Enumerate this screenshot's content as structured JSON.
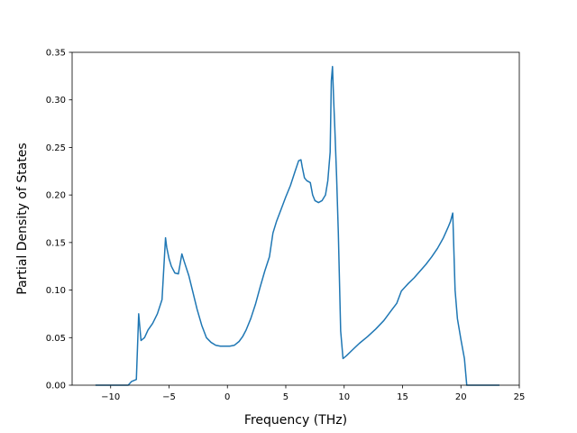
{
  "chart_data": {
    "type": "line",
    "title": "",
    "xlabel": "Frequency (THz)",
    "ylabel": "Partial Density of States",
    "xlim": [
      -13.3,
      25
    ],
    "ylim": [
      0,
      0.35
    ],
    "grid": false,
    "line_color": "#1f77b4",
    "x_ticks": [
      -10,
      -5,
      0,
      5,
      10,
      15,
      20,
      25
    ],
    "x_tick_labels": [
      "−10",
      "−5",
      "0",
      "5",
      "10",
      "15",
      "20",
      "25"
    ],
    "y_ticks": [
      0.0,
      0.05,
      0.1,
      0.15,
      0.2,
      0.25,
      0.3,
      0.35
    ],
    "y_tick_labels": [
      "0.00",
      "0.05",
      "0.10",
      "0.15",
      "0.20",
      "0.25",
      "0.30",
      "0.35"
    ],
    "series": [
      {
        "x": [
          -11.3,
          -10.0,
          -9.0,
          -8.5,
          -8.2,
          -7.8,
          -7.7,
          -7.6,
          -7.4,
          -7.1,
          -6.8,
          -6.4,
          -6.0,
          -5.6,
          -5.3,
          -5.2,
          -5.0,
          -4.8,
          -4.5,
          -4.2,
          -3.9,
          -3.7,
          -3.3,
          -3.0,
          -2.6,
          -2.2,
          -1.8,
          -1.4,
          -1.0,
          -0.6,
          -0.2,
          0.2,
          0.6,
          1.0,
          1.3,
          1.6,
          2.0,
          2.4,
          2.8,
          3.2,
          3.6,
          3.9,
          4.2,
          4.6,
          5.0,
          5.4,
          5.8,
          6.1,
          6.3,
          6.4,
          6.6,
          6.8,
          7.1,
          7.3,
          7.5,
          7.8,
          8.1,
          8.4,
          8.6,
          8.8,
          8.9,
          9.0,
          9.1,
          9.2,
          9.35,
          9.5,
          9.7,
          9.9,
          10.2,
          10.7,
          11.3,
          12.0,
          12.7,
          13.4,
          14.0,
          14.5,
          14.9,
          15.2,
          15.5,
          16.0,
          16.5,
          17.0,
          17.5,
          18.0,
          18.5,
          18.9,
          19.1,
          19.3,
          19.5,
          19.7,
          20.0,
          20.3,
          20.5,
          21.0,
          22.0,
          23.3
        ],
        "y": [
          0.0,
          0.0,
          0.0,
          0.0,
          0.004,
          0.006,
          0.04,
          0.075,
          0.047,
          0.05,
          0.058,
          0.065,
          0.075,
          0.09,
          0.155,
          0.145,
          0.133,
          0.125,
          0.118,
          0.117,
          0.138,
          0.13,
          0.115,
          0.1,
          0.08,
          0.063,
          0.05,
          0.045,
          0.042,
          0.041,
          0.041,
          0.041,
          0.042,
          0.046,
          0.051,
          0.058,
          0.07,
          0.085,
          0.103,
          0.12,
          0.135,
          0.16,
          0.172,
          0.185,
          0.198,
          0.21,
          0.225,
          0.236,
          0.237,
          0.23,
          0.218,
          0.215,
          0.213,
          0.2,
          0.194,
          0.192,
          0.194,
          0.2,
          0.215,
          0.245,
          0.32,
          0.335,
          0.3,
          0.27,
          0.22,
          0.16,
          0.057,
          0.028,
          0.031,
          0.037,
          0.044,
          0.051,
          0.059,
          0.068,
          0.078,
          0.086,
          0.099,
          0.103,
          0.107,
          0.113,
          0.12,
          0.127,
          0.135,
          0.144,
          0.155,
          0.166,
          0.172,
          0.181,
          0.1,
          0.07,
          0.048,
          0.028,
          0.0,
          0.0,
          0.0,
          0.0
        ]
      }
    ]
  }
}
